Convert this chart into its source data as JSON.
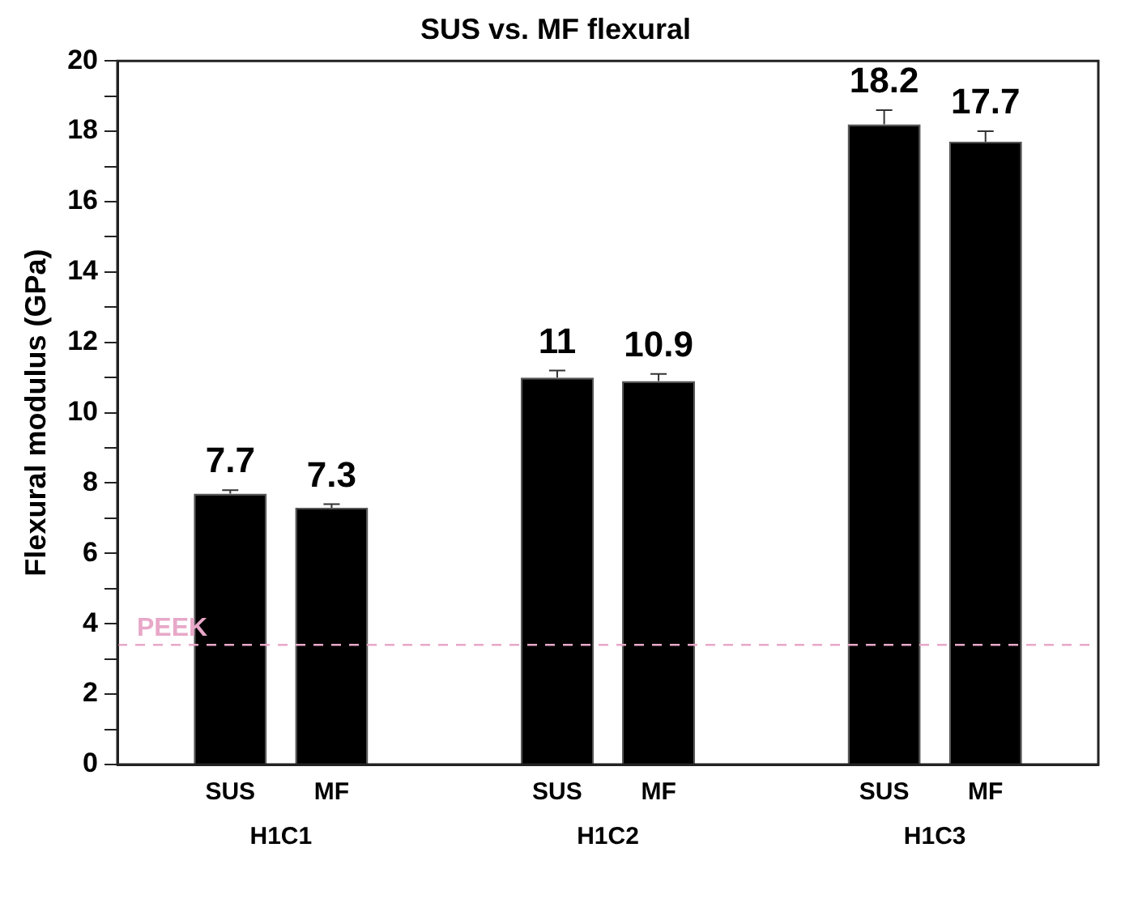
{
  "chart_data": {
    "type": "bar",
    "title": "SUS vs. MF flexural",
    "ylabel": "Flexural modulus (GPa)",
    "categories": [
      "H1C1",
      "H1C2",
      "H1C3"
    ],
    "series": [
      {
        "name": "SUS",
        "color": "#000000",
        "values": [
          7.7,
          11,
          18.2
        ],
        "errors": [
          0.1,
          0.2,
          0.4
        ]
      },
      {
        "name": "MF",
        "color": "#000000",
        "values": [
          7.3,
          10.9,
          17.7
        ],
        "errors": [
          0.1,
          0.2,
          0.3
        ]
      }
    ],
    "ylim": [
      0,
      20
    ],
    "yticks": [
      0,
      {
        "value": 1,
        "label": null
      },
      2,
      {
        "value": 3,
        "label": null
      },
      4,
      {
        "value": 5,
        "label": null
      },
      6,
      {
        "value": 7,
        "label": null
      },
      8,
      {
        "value": 9,
        "label": null
      },
      10,
      {
        "value": 11,
        "label": null
      },
      12,
      {
        "value": 13,
        "label": null
      },
      14,
      {
        "value": 15,
        "label": null
      },
      16,
      {
        "value": 17,
        "label": null
      },
      18,
      {
        "value": 19,
        "label": null
      },
      20
    ],
    "ref_lines": [
      {
        "axis": "y",
        "value": 3.4,
        "label": "PEEK",
        "color": "#e8a8c8",
        "line_style": "dashed"
      }
    ],
    "data_labels": true,
    "grid": false,
    "legend": false
  }
}
